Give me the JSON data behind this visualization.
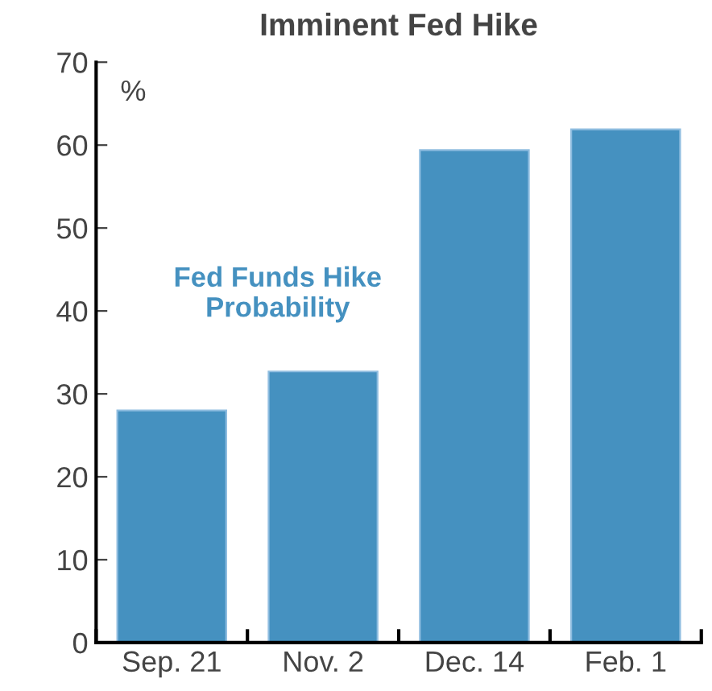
{
  "chart_data": {
    "type": "bar",
    "title": "Imminent Fed Hike",
    "ylabel": "%",
    "categories": [
      "Sep. 21",
      "Nov. 2",
      "Dec. 14",
      "Feb. 1"
    ],
    "series": [
      {
        "name": "Fed Funds Hike Probability",
        "color": "#4591c0",
        "values": [
          28,
          32.7,
          59.4,
          61.9
        ]
      }
    ],
    "ylim": [
      0,
      70
    ],
    "yticks": [
      0,
      10,
      20,
      30,
      40,
      50,
      60,
      70
    ],
    "grid": false,
    "legend": false
  }
}
